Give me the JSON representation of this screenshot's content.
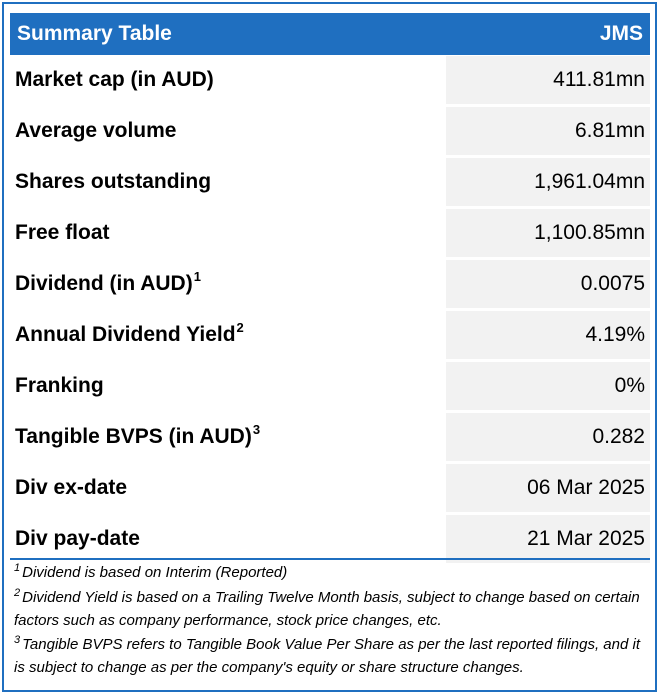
{
  "header": {
    "title": "Summary Table",
    "ticker": "JMS"
  },
  "colors": {
    "accent": "#1f6fc0",
    "value_bg": "#f2f2f2"
  },
  "rows": [
    {
      "label": "Market cap (in AUD)",
      "sup": "",
      "value": "411.81mn"
    },
    {
      "label": "Average volume",
      "sup": "",
      "value": "6.81mn"
    },
    {
      "label": "Shares outstanding",
      "sup": "",
      "value": "1,961.04mn"
    },
    {
      "label": "Free float",
      "sup": "",
      "value": "1,100.85mn"
    },
    {
      "label": "Dividend (in AUD)",
      "sup": "1",
      "value": "0.0075"
    },
    {
      "label": "Annual Dividend Yield",
      "sup": "2",
      "value": "4.19%"
    },
    {
      "label": "Franking",
      "sup": "",
      "value": "0%"
    },
    {
      "label": "Tangible BVPS (in AUD)",
      "sup": "3",
      "value": "0.282"
    },
    {
      "label": "Div ex-date",
      "sup": "",
      "value": "06 Mar 2025"
    },
    {
      "label": "Div pay-date",
      "sup": "",
      "value": "21 Mar 2025"
    }
  ],
  "footnotes": [
    {
      "num": "1",
      "text": "Dividend is based on Interim (Reported)"
    },
    {
      "num": "2",
      "text": "Dividend Yield is based on a Trailing Twelve Month basis, subject to change based on certain factors such as company performance, stock price changes, etc."
    },
    {
      "num": "3",
      "text": "Tangible BVPS refers to Tangible Book Value Per Share as per the last reported filings, and it is subject to change as per the company's equity or share structure changes."
    }
  ]
}
